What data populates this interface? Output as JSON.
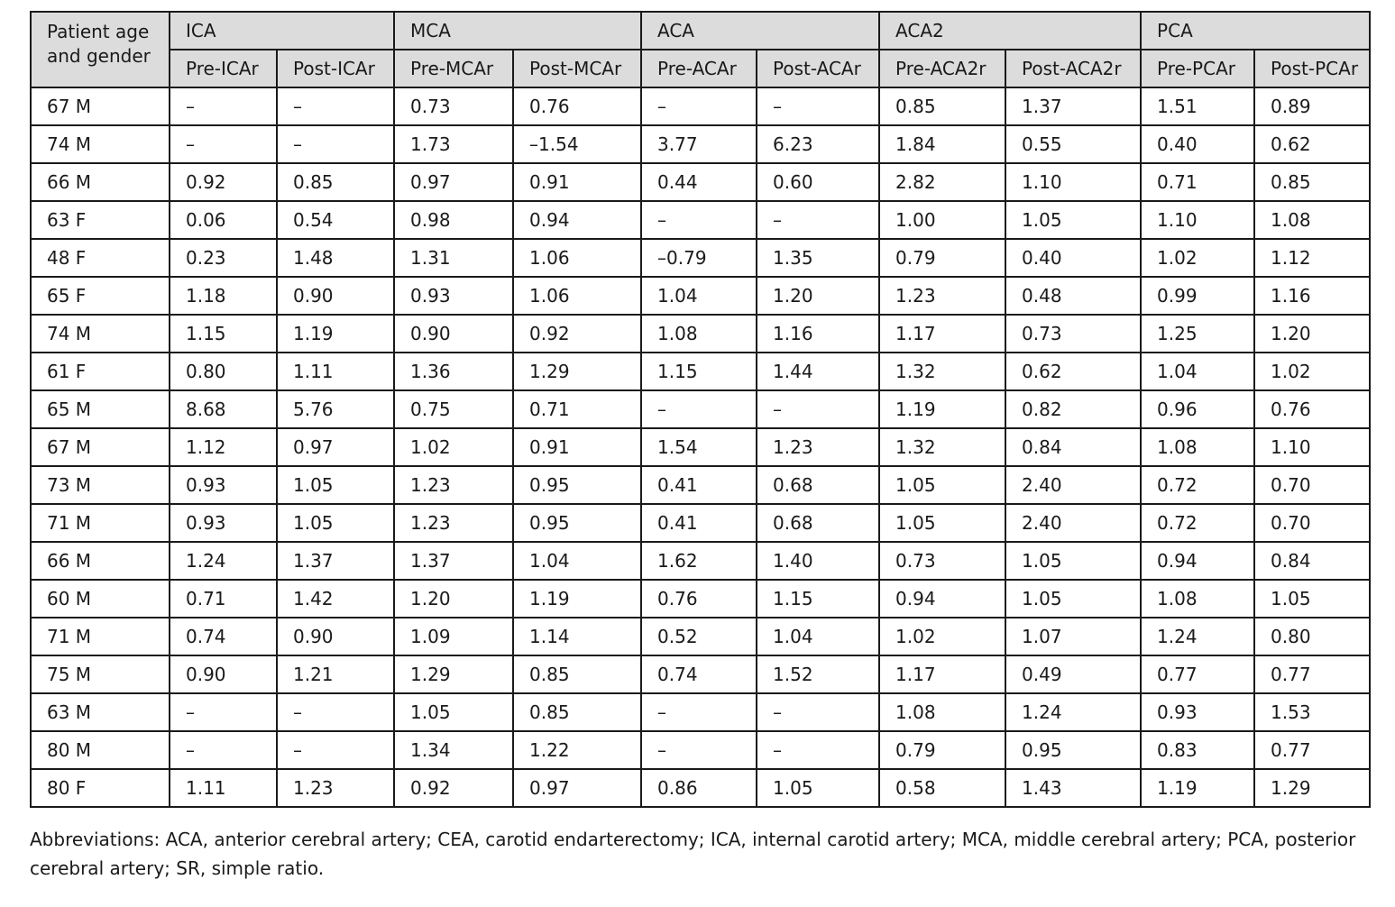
{
  "table": {
    "corner_label": "Patient age and gender",
    "groups": [
      "ICA",
      "MCA",
      "ACA",
      "ACA2",
      "PCA"
    ],
    "subheaders": [
      "Pre-ICAr",
      "Post-ICAr",
      "Pre-MCAr",
      "Post-MCAr",
      "Pre-ACAr",
      "Post-ACAr",
      "Pre-ACA2r",
      "Post-ACA2r",
      "Pre-PCAr",
      "Post-PCAr"
    ],
    "rows": [
      [
        "67 M",
        "–",
        "–",
        "0.73",
        "0.76",
        "–",
        "–",
        "0.85",
        "1.37",
        "1.51",
        "0.89"
      ],
      [
        "74 M",
        "–",
        "–",
        "1.73",
        "–1.54",
        "3.77",
        "6.23",
        "1.84",
        "0.55",
        "0.40",
        "0.62"
      ],
      [
        "66 M",
        "0.92",
        "0.85",
        "0.97",
        "0.91",
        "0.44",
        "0.60",
        "2.82",
        "1.10",
        "0.71",
        "0.85"
      ],
      [
        "63 F",
        "0.06",
        "0.54",
        "0.98",
        "0.94",
        "–",
        "–",
        "1.00",
        "1.05",
        "1.10",
        "1.08"
      ],
      [
        "48 F",
        "0.23",
        "1.48",
        "1.31",
        "1.06",
        "–0.79",
        "1.35",
        "0.79",
        "0.40",
        "1.02",
        "1.12"
      ],
      [
        "65 F",
        "1.18",
        "0.90",
        "0.93",
        "1.06",
        "1.04",
        "1.20",
        "1.23",
        "0.48",
        "0.99",
        "1.16"
      ],
      [
        "74 M",
        "1.15",
        "1.19",
        "0.90",
        "0.92",
        "1.08",
        "1.16",
        "1.17",
        "0.73",
        "1.25",
        "1.20"
      ],
      [
        "61 F",
        "0.80",
        "1.11",
        "1.36",
        "1.29",
        "1.15",
        "1.44",
        "1.32",
        "0.62",
        "1.04",
        "1.02"
      ],
      [
        "65 M",
        "8.68",
        "5.76",
        "0.75",
        "0.71",
        "–",
        "–",
        "1.19",
        "0.82",
        "0.96",
        "0.76"
      ],
      [
        "67 M",
        "1.12",
        "0.97",
        "1.02",
        "0.91",
        "1.54",
        "1.23",
        "1.32",
        "0.84",
        "1.08",
        "1.10"
      ],
      [
        "73 M",
        "0.93",
        "1.05",
        "1.23",
        "0.95",
        "0.41",
        "0.68",
        "1.05",
        "2.40",
        "0.72",
        "0.70"
      ],
      [
        "71 M",
        "0.93",
        "1.05",
        "1.23",
        "0.95",
        "0.41",
        "0.68",
        "1.05",
        "2.40",
        "0.72",
        "0.70"
      ],
      [
        "66 M",
        "1.24",
        "1.37",
        "1.37",
        "1.04",
        "1.62",
        "1.40",
        "0.73",
        "1.05",
        "0.94",
        "0.84"
      ],
      [
        "60 M",
        "0.71",
        "1.42",
        "1.20",
        "1.19",
        "0.76",
        "1.15",
        "0.94",
        "1.05",
        "1.08",
        "1.05"
      ],
      [
        "71 M",
        "0.74",
        "0.90",
        "1.09",
        "1.14",
        "0.52",
        "1.04",
        "1.02",
        "1.07",
        "1.24",
        "0.80"
      ],
      [
        "75 M",
        "0.90",
        "1.21",
        "1.29",
        "0.85",
        "0.74",
        "1.52",
        "1.17",
        "0.49",
        "0.77",
        "0.77"
      ],
      [
        "63 M",
        "–",
        "–",
        "1.05",
        "0.85",
        "–",
        "–",
        "1.08",
        "1.24",
        "0.93",
        "1.53"
      ],
      [
        "80 M",
        "–",
        "–",
        "1.34",
        "1.22",
        "–",
        "–",
        "0.79",
        "0.95",
        "0.83",
        "0.77"
      ],
      [
        "80 F",
        "1.11",
        "1.23",
        "0.92",
        "0.97",
        "0.86",
        "1.05",
        "0.58",
        "1.43",
        "1.19",
        "1.29"
      ]
    ]
  },
  "footnote": "Abbreviations: ACA, anterior cerebral artery; CEA, carotid endarterectomy; ICA, internal carotid artery; MCA, middle cerebral artery; PCA, posterior cerebral artery; SR, simple ratio."
}
